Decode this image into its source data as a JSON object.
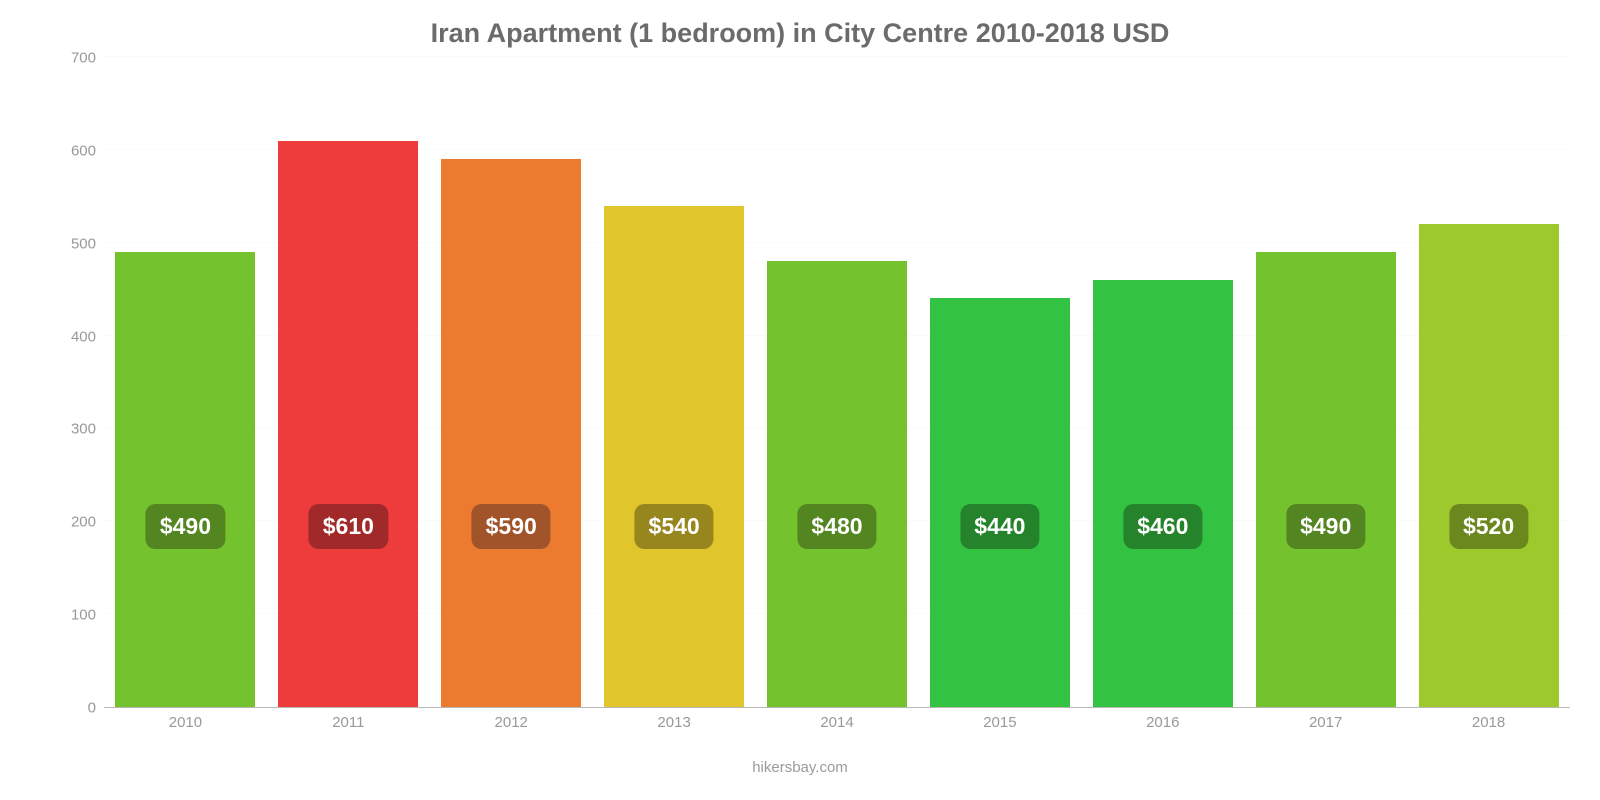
{
  "chart": {
    "type": "bar",
    "title": "Iran Apartment (1 bedroom) in City Centre 2010-2018 USD",
    "title_color": "#6b6b6b",
    "title_fontsize": 27,
    "background_color": "#ffffff",
    "grid_color": "#fafafa",
    "axis_line_color": "#b8b8b8",
    "tick_label_color": "#999999",
    "tick_label_fontsize": 15,
    "bar_label_fontsize": 23,
    "bar_label_text_color": "#ffffff",
    "bar_width": 0.86,
    "ylim": [
      0,
      700
    ],
    "ytick_step": 100,
    "yticks": [
      0,
      100,
      200,
      300,
      400,
      500,
      600,
      700
    ],
    "categories": [
      "2010",
      "2011",
      "2012",
      "2013",
      "2014",
      "2015",
      "2016",
      "2017",
      "2018"
    ],
    "values": [
      490,
      610,
      590,
      540,
      480,
      440,
      460,
      490,
      520
    ],
    "value_labels": [
      "$490",
      "$610",
      "$590",
      "$540",
      "$480",
      "$440",
      "$460",
      "$490",
      "$520"
    ],
    "bar_colors": [
      "#74c22e",
      "#ee3c3c",
      "#ed7b2f",
      "#e0c52c",
      "#74c22e",
      "#34c243",
      "#34c243",
      "#74c22e",
      "#9ec92c"
    ],
    "bar_label_bg_colors": [
      "#538521",
      "#a2292a",
      "#a1542a",
      "#97861e",
      "#538521",
      "#25842b",
      "#25842b",
      "#538521",
      "#6b881e"
    ],
    "attribution": "hikersbay.com",
    "attribution_color": "#9a9a9a"
  }
}
